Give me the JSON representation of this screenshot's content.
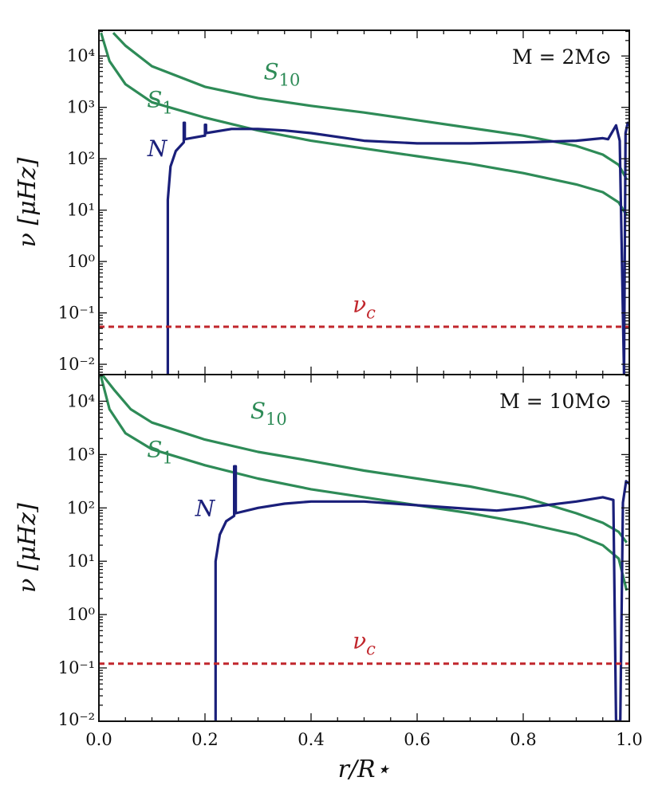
{
  "chart_data": [
    {
      "type": "line",
      "panel": "top",
      "annotation": "M = 2M⊙",
      "ylabel": "ν [μHz]",
      "xlabel": "",
      "xlim": [
        0.0,
        1.0
      ],
      "ylim_log10": [
        -2.2,
        4.5
      ],
      "yscale": "log",
      "ytick_labels": [
        "10⁻²",
        "10⁻¹",
        "10⁰",
        "10¹",
        "10²",
        "10³",
        "10⁴"
      ],
      "series": [
        {
          "name": "S1",
          "label_main": "S",
          "label_sub": "1",
          "color": "#2e8b57",
          "points": [
            [
              0.004,
              4.45
            ],
            [
              0.02,
              3.9
            ],
            [
              0.05,
              3.45
            ],
            [
              0.1,
              3.1
            ],
            [
              0.2,
              2.8
            ],
            [
              0.3,
              2.55
            ],
            [
              0.4,
              2.35
            ],
            [
              0.5,
              2.2
            ],
            [
              0.6,
              2.05
            ],
            [
              0.7,
              1.9
            ],
            [
              0.8,
              1.72
            ],
            [
              0.9,
              1.5
            ],
            [
              0.95,
              1.35
            ],
            [
              0.98,
              1.15
            ],
            [
              0.995,
              0.9
            ]
          ]
        },
        {
          "name": "S10",
          "label_main": "S",
          "label_sub": "10",
          "color": "#2e8b57",
          "points": [
            [
              0.027,
              4.45
            ],
            [
              0.05,
              4.2
            ],
            [
              0.1,
              3.8
            ],
            [
              0.2,
              3.4
            ],
            [
              0.3,
              3.18
            ],
            [
              0.4,
              3.03
            ],
            [
              0.5,
              2.9
            ],
            [
              0.6,
              2.75
            ],
            [
              0.7,
              2.6
            ],
            [
              0.8,
              2.45
            ],
            [
              0.9,
              2.25
            ],
            [
              0.95,
              2.08
            ],
            [
              0.98,
              1.88
            ],
            [
              0.995,
              1.6
            ]
          ]
        },
        {
          "name": "N",
          "label_main": "N",
          "label_sub": "",
          "color": "#1a1f7a",
          "points": [
            [
              0.13,
              -2.2
            ],
            [
              0.13,
              1.2
            ],
            [
              0.135,
              1.85
            ],
            [
              0.145,
              2.15
            ],
            [
              0.16,
              2.32
            ],
            [
              0.16,
              2.7
            ],
            [
              0.162,
              2.7
            ],
            [
              0.162,
              2.38
            ],
            [
              0.2,
              2.45
            ],
            [
              0.2,
              2.66
            ],
            [
              0.202,
              2.66
            ],
            [
              0.202,
              2.5
            ],
            [
              0.25,
              2.58
            ],
            [
              0.3,
              2.58
            ],
            [
              0.35,
              2.55
            ],
            [
              0.4,
              2.5
            ],
            [
              0.5,
              2.35
            ],
            [
              0.6,
              2.3
            ],
            [
              0.7,
              2.3
            ],
            [
              0.8,
              2.32
            ],
            [
              0.9,
              2.35
            ],
            [
              0.95,
              2.4
            ],
            [
              0.96,
              2.38
            ],
            [
              0.975,
              2.65
            ],
            [
              0.982,
              2.35
            ],
            [
              0.99,
              -2.2
            ],
            [
              0.993,
              2.5
            ],
            [
              0.997,
              2.7
            ],
            [
              1.0,
              2.65
            ]
          ]
        },
        {
          "name": "νc",
          "label_main": "ν",
          "label_sub": "c",
          "color": "#c1272d",
          "dashed": true,
          "points": [
            [
              0.0,
              -1.27
            ],
            [
              1.0,
              -1.27
            ]
          ]
        }
      ],
      "labels": [
        {
          "series": "S1",
          "x": 0.115,
          "y": 3.0
        },
        {
          "series": "S10",
          "x": 0.345,
          "y": 3.55
        },
        {
          "series": "N",
          "x": 0.11,
          "y": 2.05
        },
        {
          "series": "νc",
          "x": 0.5,
          "y": -0.98
        }
      ]
    },
    {
      "type": "line",
      "panel": "bottom",
      "annotation": "M = 10M⊙",
      "ylabel": "ν [μHz]",
      "xlabel": "r/R⋆",
      "xlim": [
        0.0,
        1.0
      ],
      "ylim_log10": [
        -2.0,
        4.5
      ],
      "yscale": "log",
      "xtick_labels": [
        "0.0",
        "0.2",
        "0.4",
        "0.6",
        "0.8",
        "1.0"
      ],
      "ytick_labels": [
        "10⁻²",
        "10⁻¹",
        "10⁰",
        "10¹",
        "10²",
        "10³",
        "10⁴"
      ],
      "series": [
        {
          "name": "S1",
          "label_main": "S",
          "label_sub": "1",
          "color": "#2e8b57",
          "points": [
            [
              0.003,
              4.5
            ],
            [
              0.02,
              3.85
            ],
            [
              0.05,
              3.4
            ],
            [
              0.1,
              3.1
            ],
            [
              0.2,
              2.8
            ],
            [
              0.3,
              2.55
            ],
            [
              0.4,
              2.35
            ],
            [
              0.5,
              2.2
            ],
            [
              0.6,
              2.05
            ],
            [
              0.7,
              1.9
            ],
            [
              0.8,
              1.72
            ],
            [
              0.9,
              1.5
            ],
            [
              0.95,
              1.3
            ],
            [
              0.98,
              1.05
            ],
            [
              0.995,
              0.45
            ]
          ]
        },
        {
          "name": "S10",
          "label_main": "S",
          "label_sub": "10",
          "color": "#2e8b57",
          "points": [
            [
              0.006,
              4.5
            ],
            [
              0.03,
              4.2
            ],
            [
              0.06,
              3.85
            ],
            [
              0.1,
              3.6
            ],
            [
              0.2,
              3.28
            ],
            [
              0.3,
              3.05
            ],
            [
              0.4,
              2.88
            ],
            [
              0.5,
              2.7
            ],
            [
              0.6,
              2.55
            ],
            [
              0.7,
              2.4
            ],
            [
              0.8,
              2.2
            ],
            [
              0.9,
              1.9
            ],
            [
              0.95,
              1.72
            ],
            [
              0.98,
              1.55
            ],
            [
              0.995,
              1.35
            ]
          ]
        },
        {
          "name": "N",
          "label_main": "N",
          "label_sub": "",
          "color": "#1a1f7a",
          "points": [
            [
              0.22,
              -2.0
            ],
            [
              0.22,
              1.0
            ],
            [
              0.228,
              1.5
            ],
            [
              0.24,
              1.75
            ],
            [
              0.255,
              1.85
            ],
            [
              0.255,
              2.78
            ],
            [
              0.258,
              2.78
            ],
            [
              0.258,
              1.9
            ],
            [
              0.3,
              2.0
            ],
            [
              0.35,
              2.08
            ],
            [
              0.4,
              2.12
            ],
            [
              0.5,
              2.12
            ],
            [
              0.6,
              2.05
            ],
            [
              0.7,
              1.98
            ],
            [
              0.75,
              1.95
            ],
            [
              0.8,
              2.0
            ],
            [
              0.9,
              2.12
            ],
            [
              0.95,
              2.2
            ],
            [
              0.97,
              2.15
            ],
            [
              0.975,
              -2.0
            ],
            [
              0.983,
              -2.0
            ],
            [
              0.988,
              2.1
            ],
            [
              0.994,
              2.5
            ],
            [
              1.0,
              2.45
            ]
          ]
        },
        {
          "name": "νc",
          "label_main": "ν",
          "label_sub": "c",
          "color": "#c1272d",
          "dashed": true,
          "points": [
            [
              0.0,
              -0.92
            ],
            [
              1.0,
              -0.92
            ]
          ]
        }
      ],
      "labels": [
        {
          "series": "S1",
          "x": 0.115,
          "y": 2.95
        },
        {
          "series": "S10",
          "x": 0.32,
          "y": 3.68
        },
        {
          "series": "N",
          "x": 0.2,
          "y": 1.85
        },
        {
          "series": "νc",
          "x": 0.5,
          "y": -0.63
        }
      ]
    }
  ]
}
